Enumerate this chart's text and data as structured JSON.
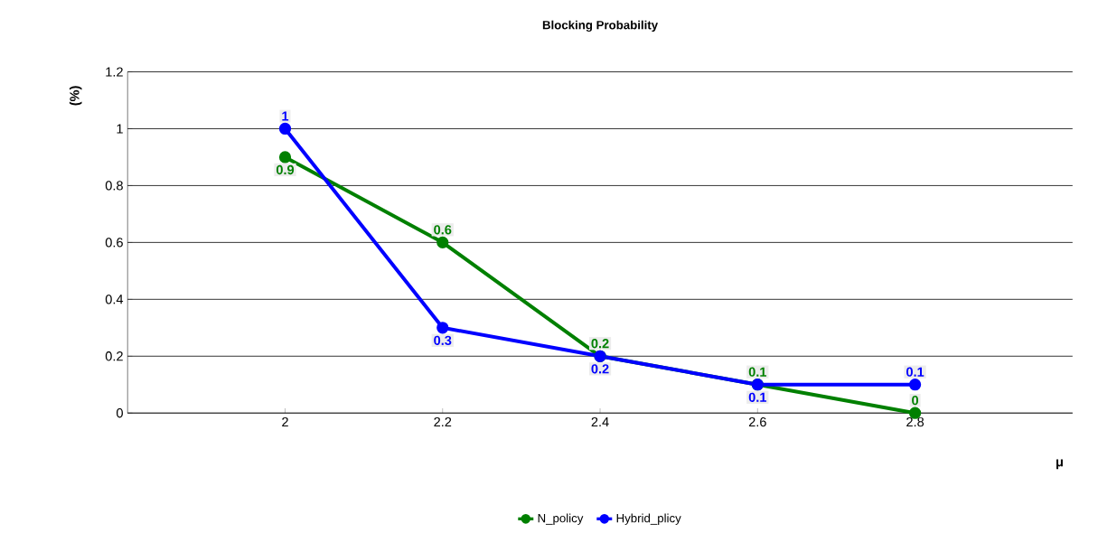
{
  "chart_data": {
    "type": "line",
    "title": "Blocking Probability",
    "xlabel": "μ",
    "ylabel": "(%)",
    "x": [
      2,
      2.2,
      2.4,
      2.6,
      2.8
    ],
    "series": [
      {
        "name": "N_policy",
        "color": "#008000",
        "values": [
          0.9,
          0.6,
          0.2,
          0.1,
          0
        ]
      },
      {
        "name": "Hybrid_plicy",
        "color": "#0000ff",
        "values": [
          1,
          0.3,
          0.2,
          0.1,
          0.1
        ]
      }
    ],
    "xlim": [
      1.8,
      3.0
    ],
    "xticks": [
      2,
      2.2,
      2.4,
      2.6,
      2.8
    ],
    "ylim": [
      0,
      1.2
    ],
    "yticks": [
      0,
      0.2,
      0.4,
      0.6,
      0.8,
      1,
      1.2
    ],
    "grid": "y",
    "legend": "bottom",
    "marker": "circle",
    "line_style": "solid",
    "data_labels": true
  }
}
